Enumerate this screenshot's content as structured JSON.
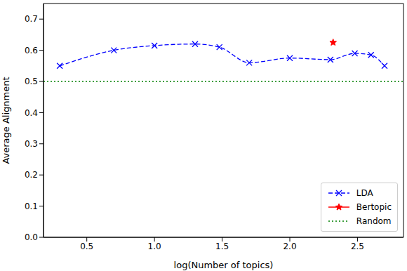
{
  "chart_data": {
    "type": "line",
    "x_label": "log(Number of topics)",
    "y_label": "Average Alignment",
    "xlim": [
      0.18,
      2.84
    ],
    "ylim": [
      0,
      0.75
    ],
    "xticks": [
      0.5,
      {
        "value": 1,
        "label": "1.0"
      },
      1.5,
      {
        "value": 2,
        "label": "2.0"
      },
      2.5
    ],
    "yticks": [
      {
        "value": 0,
        "label": "0.0"
      },
      0.1,
      0.2,
      0.3,
      0.4,
      0.5,
      0.6,
      0.7
    ],
    "grid": false,
    "legend": "lower right",
    "series": [
      {
        "name": "LDA",
        "type": "line",
        "color": "#0000ff",
        "line_style": "dashed",
        "marker": "x",
        "x": [
          0.3,
          0.7,
          1.0,
          1.3,
          1.48,
          1.7,
          2.0,
          2.3,
          2.48,
          2.6,
          2.7
        ],
        "values": [
          0.55,
          0.6,
          0.615,
          0.62,
          0.61,
          0.56,
          0.575,
          0.57,
          0.59,
          0.585,
          0.55
        ]
      },
      {
        "name": "Bertopic",
        "type": "scatter",
        "color": "#ff0000",
        "marker": "star",
        "x": [
          2.32
        ],
        "values": [
          0.625
        ]
      },
      {
        "name": "Random",
        "type": "hline",
        "color": "#008000",
        "line_style": "dotted",
        "values": [
          0.5
        ]
      }
    ]
  }
}
